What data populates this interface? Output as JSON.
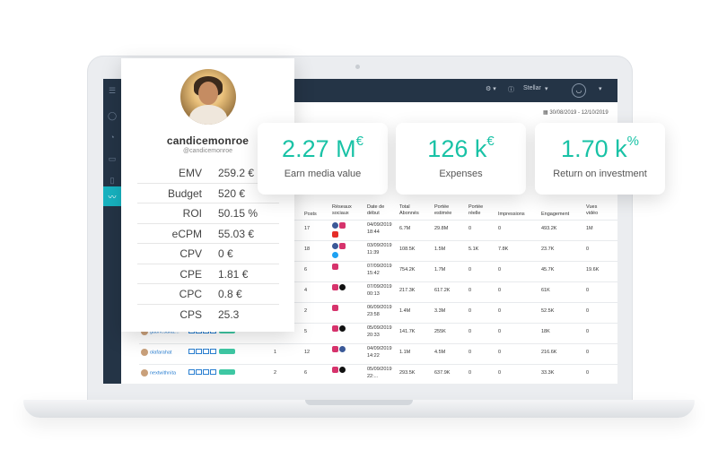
{
  "app": {
    "header_user": "Stellar",
    "date_range": "30/08/2019 - 12/10/2019"
  },
  "profile": {
    "username": "candicemonroe",
    "handle": "@candicemonroe",
    "metrics": [
      {
        "label": "EMV",
        "value": "259.2 €"
      },
      {
        "label": "Budget",
        "value": "520 €"
      },
      {
        "label": "ROI",
        "value": "50.15 %"
      },
      {
        "label": "eCPM",
        "value": "55.03 €"
      },
      {
        "label": "CPV",
        "value": "0 €"
      },
      {
        "label": "CPE",
        "value": "1.81 €"
      },
      {
        "label": "CPC",
        "value": "0.8 €"
      },
      {
        "label": "CPS",
        "value": "25.3"
      }
    ]
  },
  "kpis": [
    {
      "value": "2.27 M",
      "unit": "€",
      "label": "Earn media value"
    },
    {
      "value": "126 k",
      "unit": "€",
      "label": "Expenses"
    },
    {
      "value": "1.70 k",
      "unit": "%",
      "label": "Return on investment"
    }
  ],
  "table": {
    "headers": [
      "Posts",
      "Réseaux sociaux",
      "Date de début",
      "Total Abonnés",
      "Portée estimée",
      "Portée réelle",
      "Impressions",
      "Engagement",
      "Vues vidéo"
    ],
    "rows": [
      {
        "user": "",
        "zero": "",
        "count": "",
        "posts": "17",
        "socials": [
          "fb",
          "ig",
          "yt"
        ],
        "date": "04/09/2019",
        "time": "18:44",
        "abonnes": "6.7M",
        "estimee": "29.8M",
        "reelle": "0",
        "impressions": "0",
        "engagement": "493.2K",
        "vues": "1M"
      },
      {
        "user": "",
        "zero": "",
        "count": "",
        "posts": "18",
        "socials": [
          "fb",
          "ig",
          "tw"
        ],
        "date": "03/09/2019",
        "time": "11:39",
        "abonnes": "108.5K",
        "estimee": "1.5M",
        "reelle": "5.1K",
        "impressions": "7.8K",
        "engagement": "23.7K",
        "vues": "0"
      },
      {
        "user": "",
        "zero": "",
        "count": "",
        "posts": "6",
        "socials": [
          "ig"
        ],
        "date": "07/09/2019",
        "time": "15:42",
        "abonnes": "754.2K",
        "estimee": "1.7M",
        "reelle": "0",
        "impressions": "0",
        "engagement": "45.7K",
        "vues": "19.6K"
      },
      {
        "user": "",
        "zero": "",
        "count": "",
        "posts": "4",
        "socials": [
          "ig",
          "tk"
        ],
        "date": "07/09/2019",
        "time": "00:13",
        "abonnes": "217.3K",
        "estimee": "617.2K",
        "reelle": "0",
        "impressions": "0",
        "engagement": "61K",
        "vues": "0"
      },
      {
        "user": "",
        "zero": "",
        "count": "",
        "posts": "2",
        "socials": [
          "ig"
        ],
        "date": "06/09/2019",
        "time": "23:58",
        "abonnes": "1.4M",
        "estimee": "3.3M",
        "reelle": "0",
        "impressions": "0",
        "engagement": "52.5K",
        "vues": "0"
      },
      {
        "user": "gabriesalaz...",
        "zero": "0",
        "count": "",
        "posts": "5",
        "socials": [
          "ig",
          "tk"
        ],
        "date": "05/09/2019",
        "time": "20:33",
        "abonnes": "141.7K",
        "estimee": "255K",
        "reelle": "0",
        "impressions": "0",
        "engagement": "18K",
        "vues": "0"
      },
      {
        "user": "olafarahat",
        "zero": "",
        "count": "1",
        "posts": "12",
        "socials": [
          "ig",
          "fb"
        ],
        "date": "04/09/2019",
        "time": "14:22",
        "abonnes": "1.1M",
        "estimee": "4.5M",
        "reelle": "0",
        "impressions": "0",
        "engagement": "216.6K",
        "vues": "0"
      },
      {
        "user": "nextwithnita",
        "zero": "",
        "count": "2",
        "posts": "6",
        "socials": [
          "ig",
          "tk"
        ],
        "date": "05/09/2019",
        "time": "22:...",
        "abonnes": "293.5K",
        "estimee": "637.9K",
        "reelle": "0",
        "impressions": "0",
        "engagement": "33.3K",
        "vues": "0"
      }
    ]
  }
}
